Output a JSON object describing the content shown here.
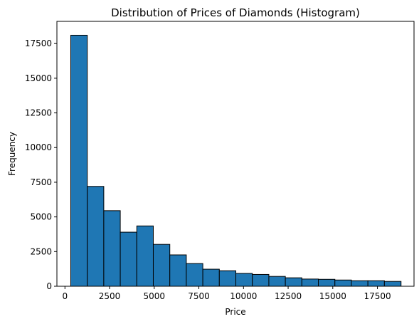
{
  "chart_data": {
    "type": "bar",
    "title": "Distribution of Prices of Diamonds (Histogram)",
    "xlabel": "Price",
    "ylabel": "Frequency",
    "xlim": [
      -450,
      19550
    ],
    "ylim": [
      0,
      19100
    ],
    "xticks": [
      0,
      2500,
      5000,
      7500,
      10000,
      12500,
      15000,
      17500
    ],
    "yticks": [
      0,
      2500,
      5000,
      7500,
      10000,
      12500,
      15000,
      17500
    ],
    "bin_edges": [
      326,
      1250,
      2175,
      3099,
      4024,
      4948,
      5873,
      6797,
      7722,
      8646,
      9571,
      10495,
      11420,
      12344,
      13269,
      14193,
      15118,
      16042,
      16967,
      17891,
      18823
    ],
    "values": [
      18100,
      7200,
      5450,
      3900,
      4350,
      3020,
      2260,
      1640,
      1230,
      1120,
      930,
      850,
      710,
      610,
      520,
      500,
      450,
      400,
      400,
      350
    ],
    "grid": false
  }
}
